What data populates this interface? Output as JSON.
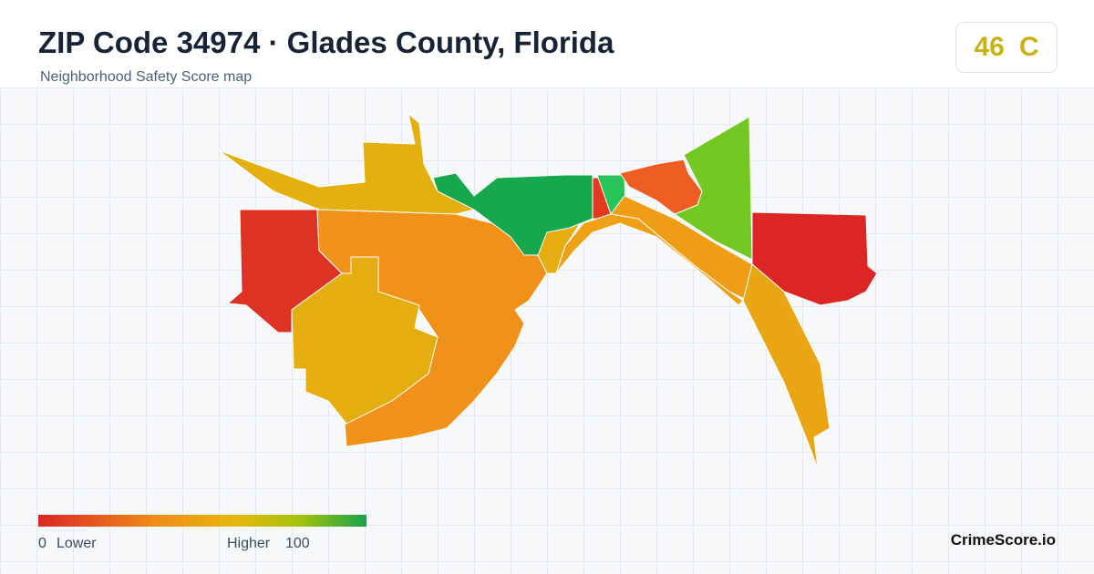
{
  "header": {
    "title": "ZIP Code 34974 · Glades County, Florida",
    "subtitle": "Neighborhood Safety Score map"
  },
  "score": {
    "value": 46,
    "grade": "C"
  },
  "legend": {
    "min": 0,
    "min_label": "Lower",
    "max_label": "Higher",
    "max": 100
  },
  "brand": "CrimeScore.io"
}
